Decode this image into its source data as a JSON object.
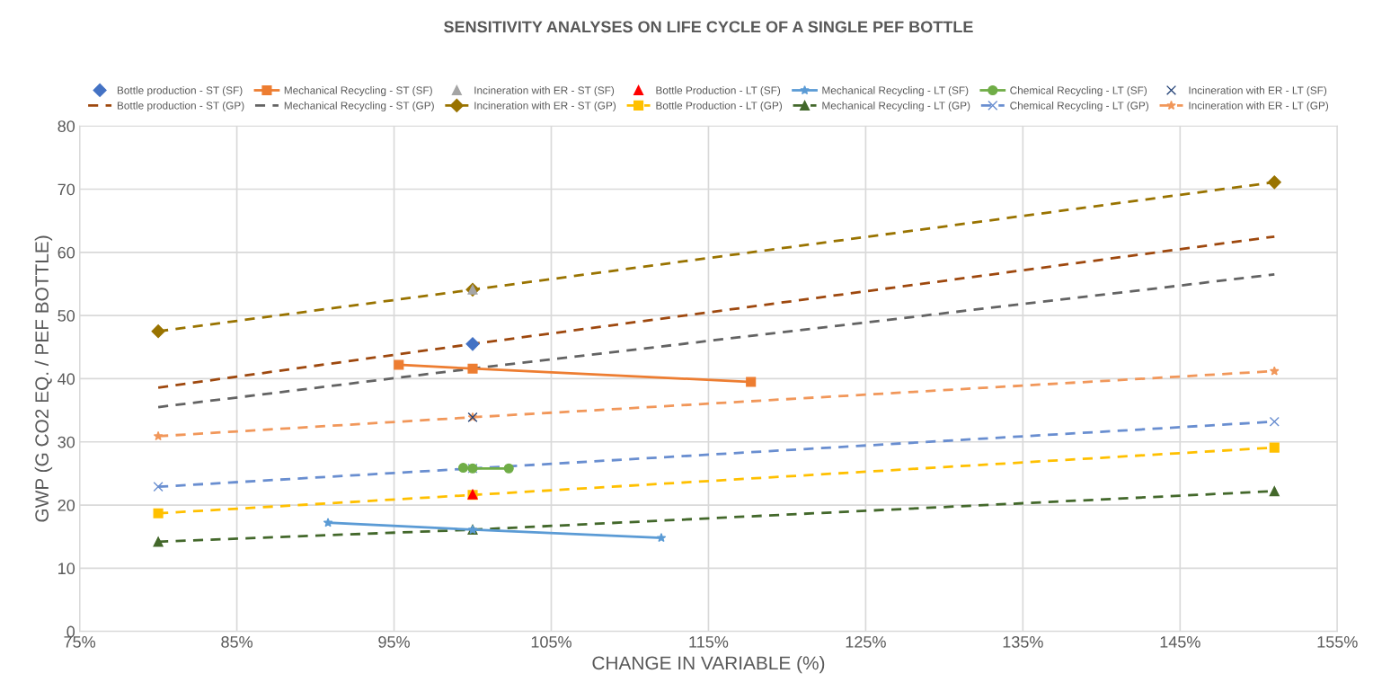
{
  "chart_data": {
    "type": "line",
    "title": "SENSITIVITY ANALYSES ON LIFE CYCLE OF A SINGLE PEF BOTTLE",
    "xlabel": "CHANGE IN VARIABLE (%)",
    "ylabel": "GWP (G CO2 EQ. / PEF BOTTLE)",
    "xlim": [
      75,
      155
    ],
    "xticks": [
      {
        "value": 75,
        "label": "75%"
      },
      {
        "value": 85,
        "label": "85%"
      },
      {
        "value": 95,
        "label": "95%"
      },
      {
        "value": 105,
        "label": "105%"
      },
      {
        "value": 115,
        "label": "115%"
      },
      {
        "value": 125,
        "label": "125%"
      },
      {
        "value": 135,
        "label": "135%"
      },
      {
        "value": 145,
        "label": "145%"
      },
      {
        "value": 155,
        "label": "155%"
      }
    ],
    "ylim": [
      0,
      80
    ],
    "yticks": [
      0,
      10,
      20,
      30,
      40,
      50,
      60,
      70,
      80
    ],
    "grid": true,
    "legend": "top",
    "series": [
      {
        "name": "Bottle production - ST (SF)",
        "color": "#4472c4",
        "x": [
          100
        ],
        "values": [
          45.5
        ],
        "marker": "diamond",
        "line_style": "none"
      },
      {
        "name": "Mechanical Recycling - ST (SF)",
        "color": "#ed7d31",
        "x": [
          95.3,
          100,
          117.7
        ],
        "values": [
          42.2,
          41.6,
          39.5
        ],
        "marker": "square",
        "line_style": "solid"
      },
      {
        "name": "Incineration with ER - ST (SF)",
        "color": "#a5a5a5",
        "x": [
          100
        ],
        "values": [
          54.1
        ],
        "marker": "triangle",
        "line_style": "none"
      },
      {
        "name": "Bottle Production - LT (SF)",
        "color": "#ff0000",
        "x": [
          100
        ],
        "values": [
          21.7
        ],
        "marker": "triangle",
        "line_style": "none"
      },
      {
        "name": "Mechanical Recycling - LT (SF)",
        "color": "#5b9bd5",
        "x": [
          90.8,
          100,
          112.0
        ],
        "values": [
          17.2,
          16.1,
          14.8
        ],
        "marker": "star",
        "line_style": "solid"
      },
      {
        "name": "Chemical Recycling - LT (SF)",
        "color": "#70ad47",
        "x": [
          99.4,
          100,
          102.3
        ],
        "values": [
          25.9,
          25.8,
          25.8
        ],
        "marker": "circle",
        "line_style": "solid"
      },
      {
        "name": "Incineration with ER - LT (SF)",
        "color": "#264478",
        "x": [
          100
        ],
        "values": [
          33.9
        ],
        "marker": "cross",
        "line_style": "none"
      },
      {
        "name": "Bottle production - ST (GP)",
        "color": "#9e480e",
        "x": [
          80,
          100,
          151
        ],
        "values": [
          38.6,
          45.5,
          62.5
        ],
        "marker": "none",
        "line_style": "dashed"
      },
      {
        "name": "Mechanical Recycling - ST (GP)",
        "color": "#636363",
        "x": [
          80,
          100,
          151
        ],
        "values": [
          35.5,
          41.6,
          56.5
        ],
        "marker": "none",
        "line_style": "dashed"
      },
      {
        "name": "Incineration with ER - ST (GP)",
        "color": "#997300",
        "x": [
          80,
          100,
          151
        ],
        "values": [
          47.5,
          54.1,
          71.1
        ],
        "marker": "diamond",
        "line_style": "dashed"
      },
      {
        "name": "Bottle Production - LT (GP)",
        "color": "#ffc000",
        "x": [
          80,
          100,
          151
        ],
        "values": [
          18.7,
          21.6,
          29.1
        ],
        "marker": "square",
        "line_style": "dashed"
      },
      {
        "name": "Mechanical Recycling - LT (GP)",
        "color": "#43682b",
        "x": [
          80,
          100,
          151
        ],
        "values": [
          14.2,
          16.1,
          22.2
        ],
        "marker": "triangle",
        "line_style": "dashed"
      },
      {
        "name": "Chemical Recycling - LT (GP)",
        "color": "#698ed0",
        "x": [
          80,
          100,
          151
        ],
        "values": [
          22.9,
          25.8,
          33.2
        ],
        "marker": "cross",
        "line_style": "dashed"
      },
      {
        "name": "Incineration with ER - LT (GP)",
        "color": "#f1975a",
        "x": [
          80,
          100,
          151
        ],
        "values": [
          30.9,
          33.9,
          41.2
        ],
        "marker": "star",
        "line_style": "dashed"
      }
    ]
  }
}
